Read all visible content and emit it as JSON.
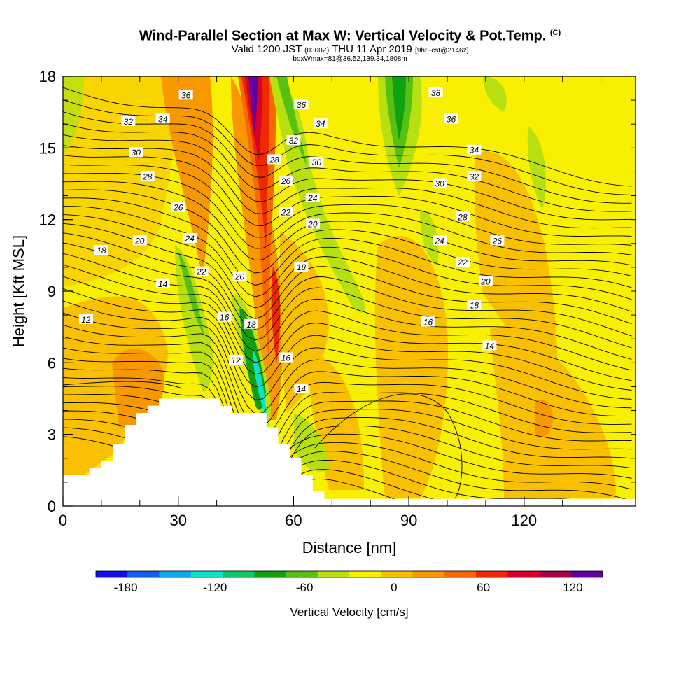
{
  "title": {
    "line1": "Wind-Parallel Section at Max W: Vertical Velocity & Pot.Temp.",
    "line1_mark": "(C)",
    "line2_a": "Valid 1200 JST",
    "line2_b": "(0300Z)",
    "line2_c": "THU 11 Apr 2019",
    "line2_d": "[9hrFcst@2146z]",
    "line3": "boxWmax=81@36.52,139.34,1808m"
  },
  "chart_data": {
    "type": "heatmap",
    "xlabel": "Distance [nm]",
    "ylabel": "Height [Kft MSL]",
    "xlim": [
      0,
      149
    ],
    "ylim": [
      0,
      18
    ],
    "x_ticks": [
      0,
      30,
      60,
      90,
      120
    ],
    "y_ticks": [
      0,
      3,
      6,
      9,
      12,
      15,
      18
    ],
    "terrain": [
      [
        0,
        1.3
      ],
      [
        3,
        1.3
      ],
      [
        7,
        1.6
      ],
      [
        10,
        1.9
      ],
      [
        13,
        2.6
      ],
      [
        16,
        3.4
      ],
      [
        19,
        3.9
      ],
      [
        22,
        4.2
      ],
      [
        25,
        4.5
      ],
      [
        38,
        4.5
      ],
      [
        41,
        4.2
      ],
      [
        44,
        3.9
      ],
      [
        50,
        3.9
      ],
      [
        53,
        3.3
      ],
      [
        56,
        2.6
      ],
      [
        59,
        2.0
      ],
      [
        62,
        1.3
      ],
      [
        65,
        0.6
      ],
      [
        68,
        0.3
      ],
      [
        72,
        0.3
      ],
      [
        149,
        0.3
      ]
    ],
    "contour_labels": [
      {
        "x": 32,
        "y": 17.2,
        "text": "36"
      },
      {
        "x": 17,
        "y": 16.1,
        "text": "32"
      },
      {
        "x": 26,
        "y": 16.2,
        "text": "34"
      },
      {
        "x": 19,
        "y": 14.8,
        "text": "30"
      },
      {
        "x": 22,
        "y": 13.8,
        "text": "28"
      },
      {
        "x": 30,
        "y": 12.5,
        "text": "26"
      },
      {
        "x": 33,
        "y": 11.2,
        "text": "24"
      },
      {
        "x": 20,
        "y": 11.1,
        "text": "20"
      },
      {
        "x": 10,
        "y": 10.7,
        "text": "18"
      },
      {
        "x": 36,
        "y": 9.8,
        "text": "22"
      },
      {
        "x": 46,
        "y": 9.6,
        "text": "20"
      },
      {
        "x": 26,
        "y": 9.3,
        "text": "14"
      },
      {
        "x": 6,
        "y": 7.8,
        "text": "12"
      },
      {
        "x": 42,
        "y": 7.9,
        "text": "16"
      },
      {
        "x": 49,
        "y": 7.6,
        "text": "18"
      },
      {
        "x": 45,
        "y": 6.1,
        "text": "12"
      },
      {
        "x": 58,
        "y": 6.2,
        "text": "16"
      },
      {
        "x": 62,
        "y": 4.9,
        "text": "14"
      },
      {
        "x": 62,
        "y": 16.8,
        "text": "36"
      },
      {
        "x": 67,
        "y": 16.0,
        "text": "34"
      },
      {
        "x": 60,
        "y": 15.3,
        "text": "32"
      },
      {
        "x": 55,
        "y": 14.5,
        "text": "28"
      },
      {
        "x": 66,
        "y": 14.4,
        "text": "30"
      },
      {
        "x": 58,
        "y": 13.6,
        "text": "26"
      },
      {
        "x": 65,
        "y": 12.9,
        "text": "24"
      },
      {
        "x": 58,
        "y": 12.3,
        "text": "22"
      },
      {
        "x": 65,
        "y": 11.8,
        "text": "20"
      },
      {
        "x": 62,
        "y": 10.0,
        "text": "18"
      },
      {
        "x": 97,
        "y": 17.3,
        "text": "38"
      },
      {
        "x": 101,
        "y": 16.2,
        "text": "36"
      },
      {
        "x": 107,
        "y": 14.9,
        "text": "34"
      },
      {
        "x": 107,
        "y": 13.8,
        "text": "32"
      },
      {
        "x": 98,
        "y": 13.5,
        "text": "30"
      },
      {
        "x": 104,
        "y": 12.1,
        "text": "28"
      },
      {
        "x": 98,
        "y": 11.1,
        "text": "24"
      },
      {
        "x": 113,
        "y": 11.1,
        "text": "26"
      },
      {
        "x": 104,
        "y": 10.2,
        "text": "22"
      },
      {
        "x": 110,
        "y": 9.4,
        "text": "20"
      },
      {
        "x": 107,
        "y": 8.4,
        "text": "18"
      },
      {
        "x": 95,
        "y": 7.7,
        "text": "16"
      },
      {
        "x": 111,
        "y": 6.7,
        "text": "14"
      }
    ],
    "colorbar": {
      "label": "Vertical Velocity [cm/s]",
      "ticks": [
        "-180",
        "-120",
        "-60",
        "0",
        "60",
        "120"
      ],
      "colors": [
        "#1010e8",
        "#1060f0",
        "#10a8f0",
        "#10e0c8",
        "#10c868",
        "#10a010",
        "#58c010",
        "#b8e010",
        "#f8f000",
        "#f8c000",
        "#f89800",
        "#f86800",
        "#f02800",
        "#d80028",
        "#a80048",
        "#6000a0"
      ]
    }
  }
}
